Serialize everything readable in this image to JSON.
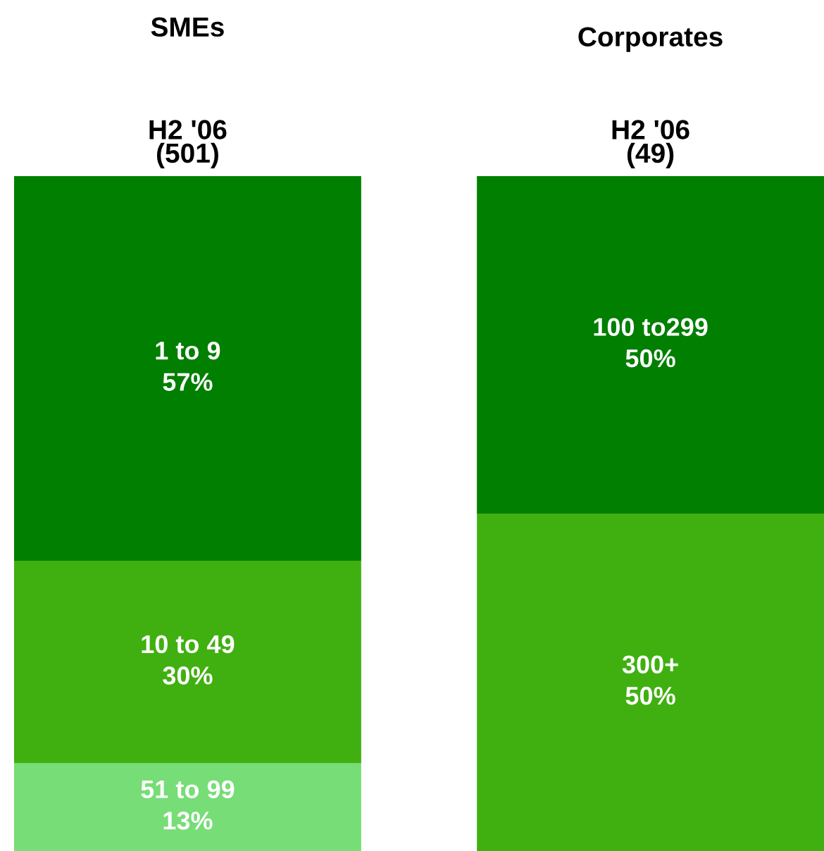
{
  "chart_data": {
    "type": "bar",
    "stacked": true,
    "categories": [
      "H2 '06\n(501)",
      "H2 '06\n(49)"
    ],
    "legend": false,
    "grid": false,
    "annotations": [
      "SMEs",
      "Corporates"
    ],
    "series": [
      {
        "name": "51 to 99",
        "color": "#77dd77",
        "values": [
          13,
          null
        ],
        "value_labels": [
          "13%",
          null
        ]
      },
      {
        "name": "10 to 49",
        "color": "#40b010",
        "values": [
          30,
          null
        ],
        "value_labels": [
          "30%",
          null
        ]
      },
      {
        "name": "1 to 9",
        "color": "#007f00",
        "values": [
          57,
          null
        ],
        "value_labels": [
          "57%",
          null
        ]
      },
      {
        "name": "300+",
        "color": "#40b010",
        "values": [
          null,
          50
        ],
        "value_labels": [
          null,
          "50%"
        ]
      },
      {
        "name": "100 to299",
        "color": "#007f00",
        "values": [
          null,
          50
        ],
        "value_labels": [
          null,
          "50%"
        ]
      }
    ]
  }
}
